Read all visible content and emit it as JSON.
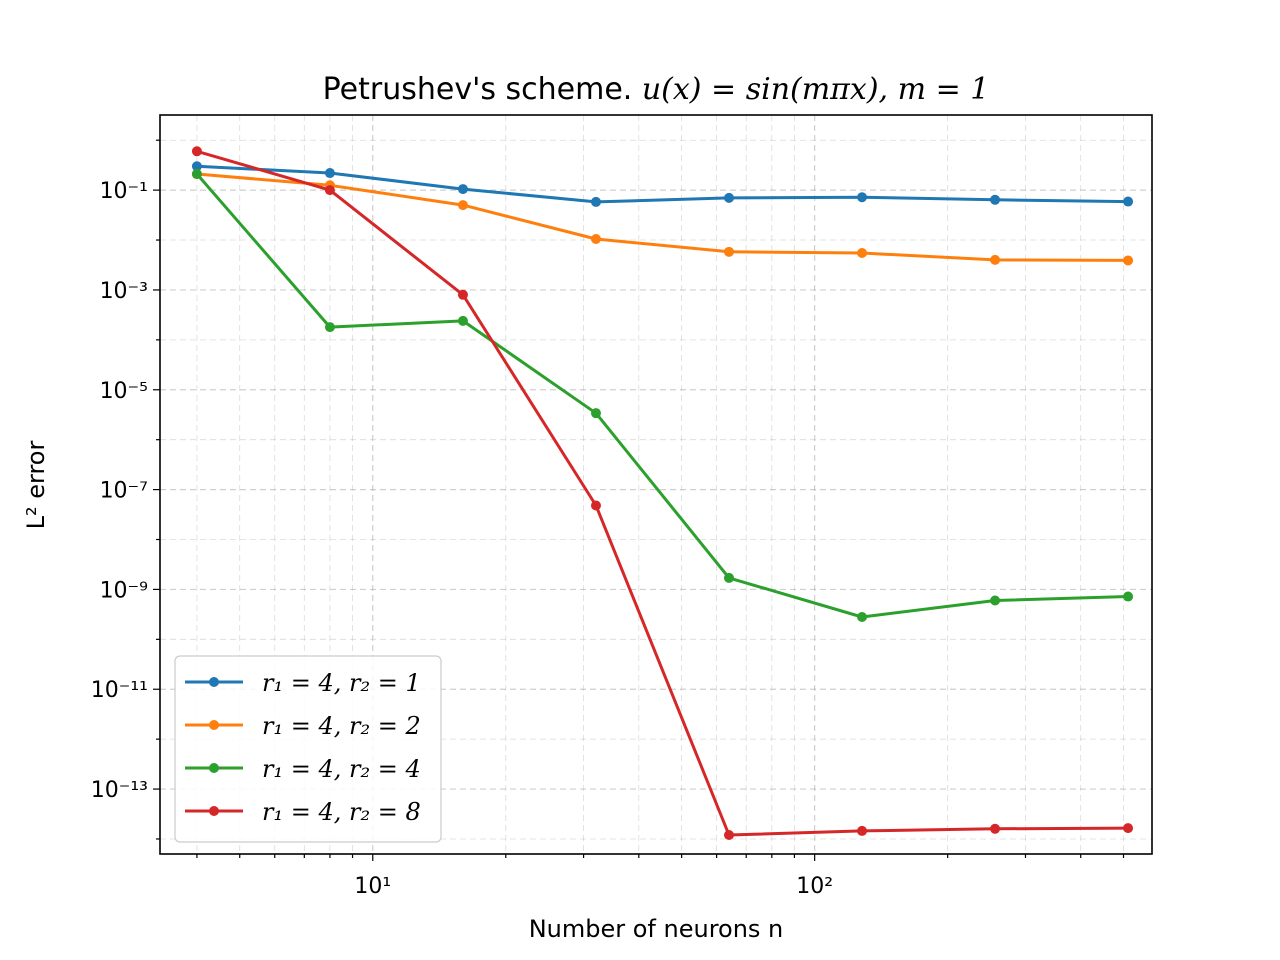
{
  "chart_data": {
    "type": "line",
    "title_text": "Petrushev's scheme. ",
    "title_math": "u(x) = sin(mπx), m = 1",
    "xlabel": "Number of neurons n",
    "ylabel": "L² error",
    "x_scale": "log",
    "y_scale": "log",
    "xlim": [
      3.3,
      580
    ],
    "ylim": [
      5e-15,
      3.2
    ],
    "x_tick_labels": [
      "10¹",
      "10²"
    ],
    "y_tick_labels": [
      "10⁻¹",
      "10⁻³",
      "10⁻⁵",
      "10⁻⁷",
      "10⁻⁹",
      "10⁻¹¹",
      "10⁻¹³"
    ],
    "grid": true,
    "legend_position": "lower-left",
    "x": [
      4,
      8,
      16,
      32,
      64,
      128,
      256,
      512
    ],
    "series": [
      {
        "name": "r₁ = 4, r₂ = 1",
        "color": "#1f77b4",
        "values": [
          0.3,
          0.22,
          0.105,
          0.058,
          0.07,
          0.072,
          0.064,
          0.059
        ]
      },
      {
        "name": "r₁ = 4, r₂ = 2",
        "color": "#ff7f0e",
        "values": [
          0.21,
          0.125,
          0.05,
          0.0105,
          0.0058,
          0.0055,
          0.004,
          0.0039
        ]
      },
      {
        "name": "r₁ = 4, r₂ = 4",
        "color": "#2ca02c",
        "values": [
          0.21,
          0.00018,
          0.00024,
          3.4e-06,
          1.7e-09,
          2.8e-10,
          6e-10,
          7.2e-10
        ]
      },
      {
        "name": "r₁ = 4, r₂ = 8",
        "color": "#d62728",
        "values": [
          0.6,
          0.1,
          0.0008,
          4.8e-08,
          1.2e-14,
          1.45e-14,
          1.6e-14,
          1.65e-14
        ]
      }
    ]
  }
}
